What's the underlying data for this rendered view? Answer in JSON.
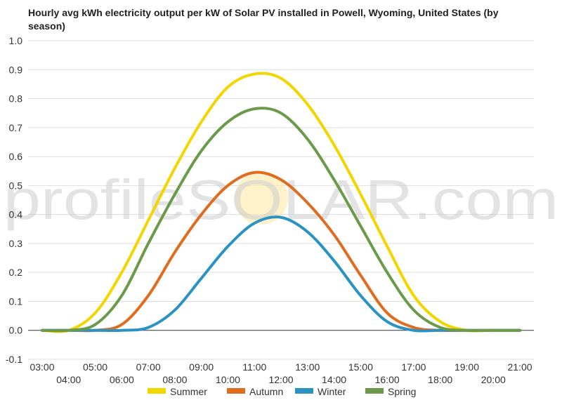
{
  "chart_data": {
    "type": "line",
    "title": "Hourly avg kWh electricity output per kW of Solar PV installed in Powell, Wyoming, United States (by season)",
    "xlabel": "",
    "ylabel": "",
    "x": [
      "03:00",
      "04:00",
      "05:00",
      "06:00",
      "07:00",
      "08:00",
      "09:00",
      "10:00",
      "11:00",
      "12:00",
      "13:00",
      "14:00",
      "15:00",
      "16:00",
      "17:00",
      "18:00",
      "19:00",
      "20:00",
      "21:00"
    ],
    "ylim": [
      -0.1,
      1.0
    ],
    "y_ticks": [
      "-0.1",
      "0.0",
      "0.1",
      "0.2",
      "0.3",
      "0.4",
      "0.5",
      "0.6",
      "0.7",
      "0.8",
      "0.9",
      "1.0"
    ],
    "grid": true,
    "legend_position": "bottom",
    "series": [
      {
        "name": "Summer",
        "color": "#f2d600",
        "values": [
          0.0,
          0.0,
          0.06,
          0.2,
          0.38,
          0.56,
          0.72,
          0.84,
          0.885,
          0.87,
          0.78,
          0.64,
          0.47,
          0.29,
          0.12,
          0.03,
          0.0,
          0.0,
          0.0
        ]
      },
      {
        "name": "Autumn",
        "color": "#e06c1f",
        "values": [
          0.0,
          0.0,
          0.0,
          0.02,
          0.12,
          0.27,
          0.4,
          0.5,
          0.545,
          0.52,
          0.44,
          0.33,
          0.19,
          0.06,
          0.01,
          0.0,
          0.0,
          0.0,
          0.0
        ]
      },
      {
        "name": "Winter",
        "color": "#2a93c4",
        "values": [
          0.0,
          0.0,
          0.0,
          0.0,
          0.01,
          0.07,
          0.18,
          0.29,
          0.37,
          0.39,
          0.34,
          0.24,
          0.12,
          0.03,
          0.0,
          0.0,
          0.0,
          0.0,
          0.0
        ]
      },
      {
        "name": "Spring",
        "color": "#6b9a4b",
        "values": [
          0.0,
          0.0,
          0.02,
          0.12,
          0.3,
          0.47,
          0.62,
          0.72,
          0.765,
          0.75,
          0.66,
          0.52,
          0.36,
          0.2,
          0.07,
          0.01,
          0.0,
          0.0,
          0.0
        ]
      }
    ]
  },
  "watermark": {
    "text": "profileSOLAR.com"
  }
}
